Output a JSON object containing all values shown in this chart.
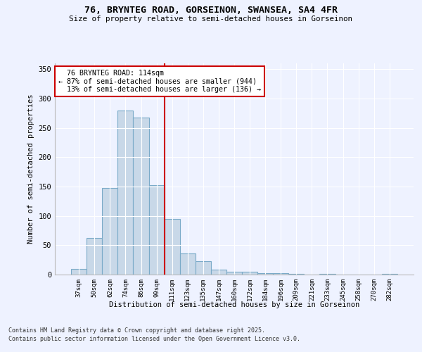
{
  "title1": "76, BRYNTEG ROAD, GORSEINON, SWANSEA, SA4 4FR",
  "title2": "Size of property relative to semi-detached houses in Gorseinon",
  "xlabel": "Distribution of semi-detached houses by size in Gorseinon",
  "ylabel": "Number of semi-detached properties",
  "categories": [
    "37sqm",
    "50sqm",
    "62sqm",
    "74sqm",
    "86sqm",
    "99sqm",
    "111sqm",
    "123sqm",
    "135sqm",
    "147sqm",
    "160sqm",
    "172sqm",
    "184sqm",
    "196sqm",
    "209sqm",
    "221sqm",
    "233sqm",
    "245sqm",
    "258sqm",
    "270sqm",
    "282sqm"
  ],
  "values": [
    10,
    63,
    148,
    280,
    268,
    153,
    95,
    36,
    23,
    9,
    5,
    5,
    3,
    3,
    1,
    0,
    1,
    0,
    0,
    0,
    1
  ],
  "bar_color": "#c8d8e8",
  "bar_edge_color": "#7aaac8",
  "highlight_label": "76 BRYNTEG ROAD: 114sqm",
  "pct_smaller": 87,
  "n_smaller": 944,
  "pct_larger": 13,
  "n_larger": 136,
  "vline_x_index": 5.5,
  "annotation_box_color": "#cc0000",
  "background_color": "#eef2ff",
  "ylim": [
    0,
    360
  ],
  "yticks": [
    0,
    50,
    100,
    150,
    200,
    250,
    300,
    350
  ],
  "footer1": "Contains HM Land Registry data © Crown copyright and database right 2025.",
  "footer2": "Contains public sector information licensed under the Open Government Licence v3.0."
}
